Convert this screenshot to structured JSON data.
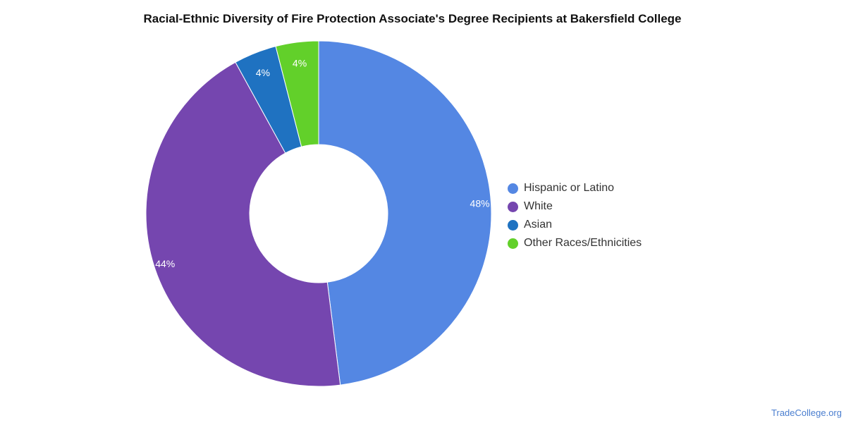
{
  "chart_data": {
    "type": "pie",
    "title": "Racial-Ethnic Diversity of Fire Protection Associate's Degree Recipients at Bakersfield College",
    "categories": [
      "Hispanic or Latino",
      "White",
      "Asian",
      "Other Races/Ethnicities"
    ],
    "values": [
      48,
      44,
      4,
      4
    ],
    "value_labels": [
      "48%",
      "44%",
      "4%",
      "4%"
    ],
    "colors": [
      "#5487e3",
      "#7546af",
      "#1f72c1",
      "#62d02a"
    ],
    "donut": true,
    "legend_position": "right"
  },
  "watermark": "TradeCollege.org"
}
